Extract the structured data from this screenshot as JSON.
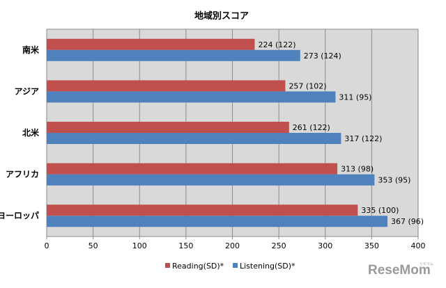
{
  "chart_data": {
    "type": "bar",
    "orientation": "horizontal",
    "title": "地域別スコア",
    "xlabel": "",
    "ylabel": "",
    "xlim": [
      0,
      400
    ],
    "ticks": [
      0,
      50,
      100,
      150,
      200,
      250,
      300,
      350,
      400
    ],
    "grid": true,
    "legend_position": "bottom",
    "categories": [
      "南米",
      "アジア",
      "北米",
      "アフリカ",
      "ヨーロッパ"
    ],
    "series": [
      {
        "name": "Reading(SD)*",
        "color": "#c0504d",
        "values": [
          224,
          257,
          261,
          313,
          335
        ],
        "labels": [
          "224 (122)",
          "257 (102)",
          "261 (122)",
          "313 (98)",
          "335 (100)"
        ]
      },
      {
        "name": "Listening(SD)*",
        "color": "#4f81bd",
        "values": [
          273,
          311,
          317,
          353,
          367
        ],
        "labels": [
          "273 (124)",
          "311 (95)",
          "317 (122)",
          "353 (95)",
          "367 (96)"
        ]
      }
    ]
  },
  "watermark": {
    "text": "ReseMom",
    "small": "リセマム"
  }
}
